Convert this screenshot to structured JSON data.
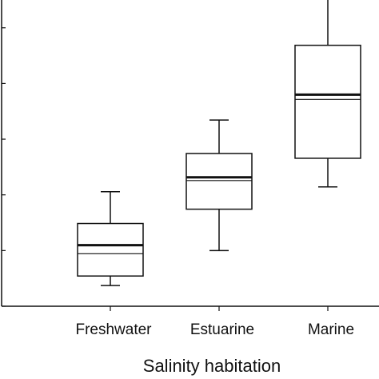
{
  "chart_data": {
    "type": "box",
    "title": "",
    "xlabel": "Salinity habitation",
    "ylabel": "",
    "ylim": [
      0,
      100
    ],
    "grid": false,
    "legend": "none",
    "categories": [
      "Freshwater",
      "Estuarine",
      "Marine"
    ],
    "boxes": [
      {
        "whisker_low": 6.5,
        "q1": 9.5,
        "median_thin": 16.5,
        "median": 19.2,
        "q3": 26.0,
        "whisker_high": 36.0
      },
      {
        "whisker_low": 17.5,
        "q1": 30.5,
        "median_thin": 39.5,
        "median": 40.5,
        "q3": 48.0,
        "whisker_high": 58.5
      },
      {
        "whisker_low": 37.5,
        "q1": 46.5,
        "median_thin": 65.0,
        "median": 66.5,
        "q3": 82.0,
        "whisker_high": 102.5
      }
    ],
    "colors": {
      "line": "#111111",
      "box_fill": "#ffffff"
    }
  }
}
